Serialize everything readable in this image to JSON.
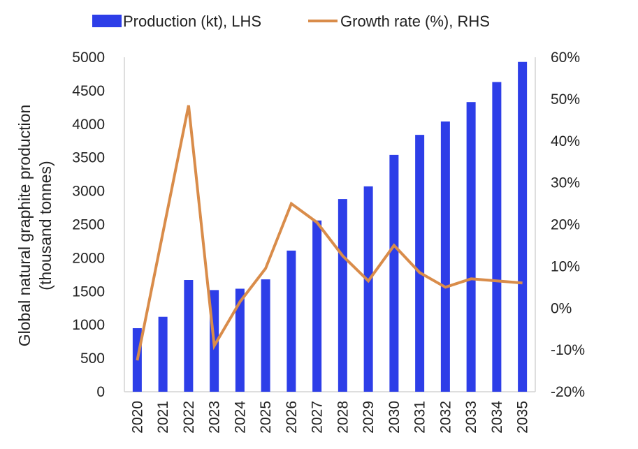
{
  "chart_data": {
    "type": "bar+line",
    "categories": [
      "2020",
      "2021",
      "2022",
      "2023",
      "2024",
      "2025",
      "2026",
      "2027",
      "2028",
      "2029",
      "2030",
      "2031",
      "2032",
      "2033",
      "2034",
      "2035"
    ],
    "series": [
      {
        "name": "Production (kt), LHS",
        "type": "bar",
        "axis": "left",
        "color": "#2d3ee8",
        "values": [
          950,
          1120,
          1670,
          1520,
          1540,
          1680,
          2110,
          2560,
          2880,
          3070,
          3540,
          3840,
          4040,
          4330,
          4630,
          4930
        ]
      },
      {
        "name": "Growth rate (%), RHS",
        "type": "line",
        "axis": "right",
        "color": "#d98c4a",
        "values": [
          -12.5,
          18,
          48.5,
          -9,
          1.5,
          9.5,
          25,
          20.5,
          12.5,
          6.5,
          15,
          8.5,
          5,
          7,
          6.5,
          6
        ]
      }
    ],
    "y_left": {
      "label_line1": "Global natural graphite production",
      "label_line2": "(thousand tonnes)",
      "ylim": [
        0,
        5000
      ],
      "ticks": [
        "0",
        "500",
        "1000",
        "1500",
        "2000",
        "2500",
        "3000",
        "3500",
        "4000",
        "4500",
        "5000"
      ]
    },
    "y_right": {
      "ylim": [
        -20,
        60
      ],
      "ticks": [
        "-20%",
        "-10%",
        "0%",
        "10%",
        "20%",
        "30%",
        "40%",
        "50%",
        "60%"
      ]
    },
    "legend": {
      "placement": "top",
      "items": [
        {
          "label": "Production (kt), LHS",
          "symbol": "bar"
        },
        {
          "label": "Growth rate (%), RHS",
          "symbol": "line"
        }
      ]
    },
    "grid": false
  }
}
